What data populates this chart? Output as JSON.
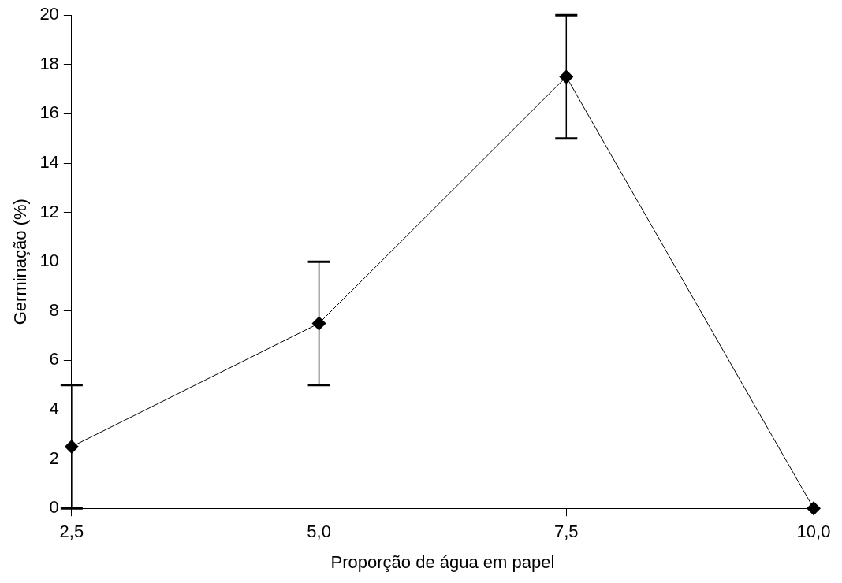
{
  "chart_data": {
    "type": "line",
    "xlabel": "Proporção de água em papel",
    "ylabel": "Germinação (%)",
    "x": [
      2.5,
      5,
      7.5,
      10
    ],
    "values": [
      2.5,
      7.5,
      17.5,
      0
    ],
    "errors": [
      2.5,
      2.5,
      2.5,
      null
    ],
    "color": "#000000",
    "xlim": [
      2.5,
      10
    ],
    "xticks": [
      {
        "value": 2.5,
        "label": "2,5"
      },
      {
        "value": 5,
        "label": "5,0"
      },
      {
        "value": 7.5,
        "label": "7,5"
      },
      {
        "value": 10,
        "label": "10,0"
      }
    ],
    "ylim": [
      0,
      20
    ],
    "yticks": [
      0,
      2,
      4,
      6,
      8,
      10,
      12,
      14,
      16,
      18,
      20
    ],
    "grid": false,
    "legend": false,
    "marker": "diamond",
    "line_style": "solid"
  }
}
